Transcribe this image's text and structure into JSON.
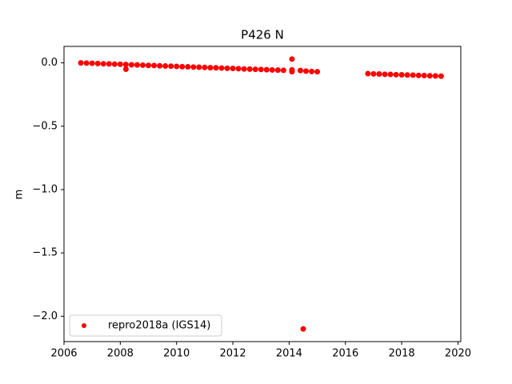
{
  "chart_data": {
    "type": "scatter",
    "title": "P426 N",
    "y_label": "m",
    "xlim": [
      2006,
      2020.1
    ],
    "ylim": [
      -2.2,
      0.13
    ],
    "xticks": [
      2006,
      2008,
      2010,
      2012,
      2014,
      2016,
      2018,
      2020
    ],
    "yticks": [
      {
        "value": 0,
        "label": "0.0"
      },
      {
        "value": -0.5,
        "label": "−0.5"
      },
      {
        "value": -1,
        "label": "−1.0"
      },
      {
        "value": -1.5,
        "label": "−1.5"
      },
      {
        "value": -2,
        "label": "−2.0"
      }
    ],
    "legend_position": "lower-left",
    "series": [
      {
        "name": "repro2018a (IGS14)",
        "color": "#ff0000",
        "x": [
          2006.6,
          2006.8,
          2007.0,
          2007.2,
          2007.4,
          2007.6,
          2007.8,
          2008.0,
          2008.2,
          2008.2,
          2008.4,
          2008.6,
          2008.8,
          2009.0,
          2009.2,
          2009.4,
          2009.6,
          2009.8,
          2010.0,
          2010.2,
          2010.4,
          2010.6,
          2010.8,
          2011.0,
          2011.2,
          2011.4,
          2011.6,
          2011.8,
          2012.0,
          2012.2,
          2012.4,
          2012.6,
          2012.8,
          2013.0,
          2013.2,
          2013.4,
          2013.6,
          2013.8,
          2014.1,
          2014.1,
          2014.1,
          2014.4,
          2014.5,
          2014.6,
          2014.8,
          2015.0,
          2016.8,
          2017.0,
          2017.2,
          2017.4,
          2017.6,
          2017.8,
          2018.0,
          2018.2,
          2018.4,
          2018.6,
          2018.8,
          2019.0,
          2019.2,
          2019.4
        ],
        "values": [
          0.0,
          -0.002,
          -0.003,
          -0.005,
          -0.007,
          -0.008,
          -0.01,
          -0.011,
          -0.013,
          -0.05,
          -0.015,
          -0.016,
          -0.018,
          -0.02,
          -0.021,
          -0.023,
          -0.025,
          -0.026,
          -0.028,
          -0.03,
          -0.031,
          -0.033,
          -0.034,
          -0.036,
          -0.038,
          -0.039,
          -0.041,
          -0.043,
          -0.044,
          -0.046,
          -0.048,
          -0.049,
          -0.051,
          -0.052,
          -0.054,
          -0.056,
          -0.057,
          -0.059,
          0.03,
          -0.055,
          -0.07,
          -0.06,
          -2.1,
          -0.065,
          -0.068,
          -0.07,
          -0.085,
          -0.087,
          -0.088,
          -0.09,
          -0.091,
          -0.093,
          -0.094,
          -0.096,
          -0.097,
          -0.099,
          -0.1,
          -0.102,
          -0.103,
          -0.105
        ]
      }
    ]
  }
}
